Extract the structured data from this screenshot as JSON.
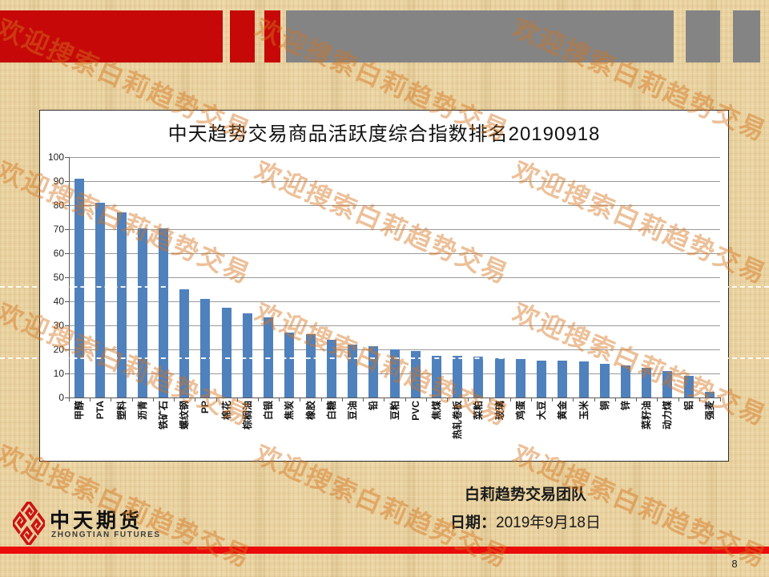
{
  "banner": {
    "red": "#c60808",
    "gray": "#848484",
    "bottom_red": "#ea0b0b"
  },
  "watermark": {
    "text": "欢迎搜索白莉趋势交易",
    "color": "rgba(213,116,28,0.45)"
  },
  "chart_data": {
    "type": "bar",
    "title": "中天趋势交易商品活跃度综合指数排名20190918",
    "categories": [
      "甲醇",
      "PTA",
      "塑料",
      "沥青",
      "铁矿石",
      "螺纹钢",
      "PP",
      "棉花",
      "棕榈油",
      "白银",
      "焦炭",
      "橡胶",
      "白糖",
      "豆油",
      "铅",
      "豆粕",
      "PVC",
      "焦煤",
      "热轧卷板",
      "菜粕",
      "玻璃",
      "鸡蛋",
      "大豆",
      "黄金",
      "玉米",
      "铜",
      "锌",
      "菜籽油",
      "动力煤",
      "铝",
      "强麦"
    ],
    "values": [
      91,
      81,
      77,
      70.5,
      70.5,
      45,
      41,
      37.5,
      35,
      33.5,
      27,
      26.5,
      24,
      22,
      21.5,
      20,
      19.5,
      17.5,
      17.5,
      17,
      16.5,
      16,
      15.5,
      15.5,
      15,
      14,
      13.5,
      12.5,
      11,
      9,
      2.5
    ],
    "xlabel": "",
    "ylabel": "",
    "ylim": [
      0,
      100
    ],
    "yticks": [
      0,
      10,
      20,
      30,
      40,
      50,
      60,
      70,
      80,
      90,
      100
    ],
    "grid": true,
    "legend": false,
    "bar_color": "#4f81bd"
  },
  "footer": {
    "logo_cn": "中天期货",
    "logo_en": "ZHONGTIAN FUTURES",
    "team": "白莉趋势交易团队",
    "date_label": "日期：",
    "date_value": "2019年9月18日",
    "page_number": "8"
  }
}
